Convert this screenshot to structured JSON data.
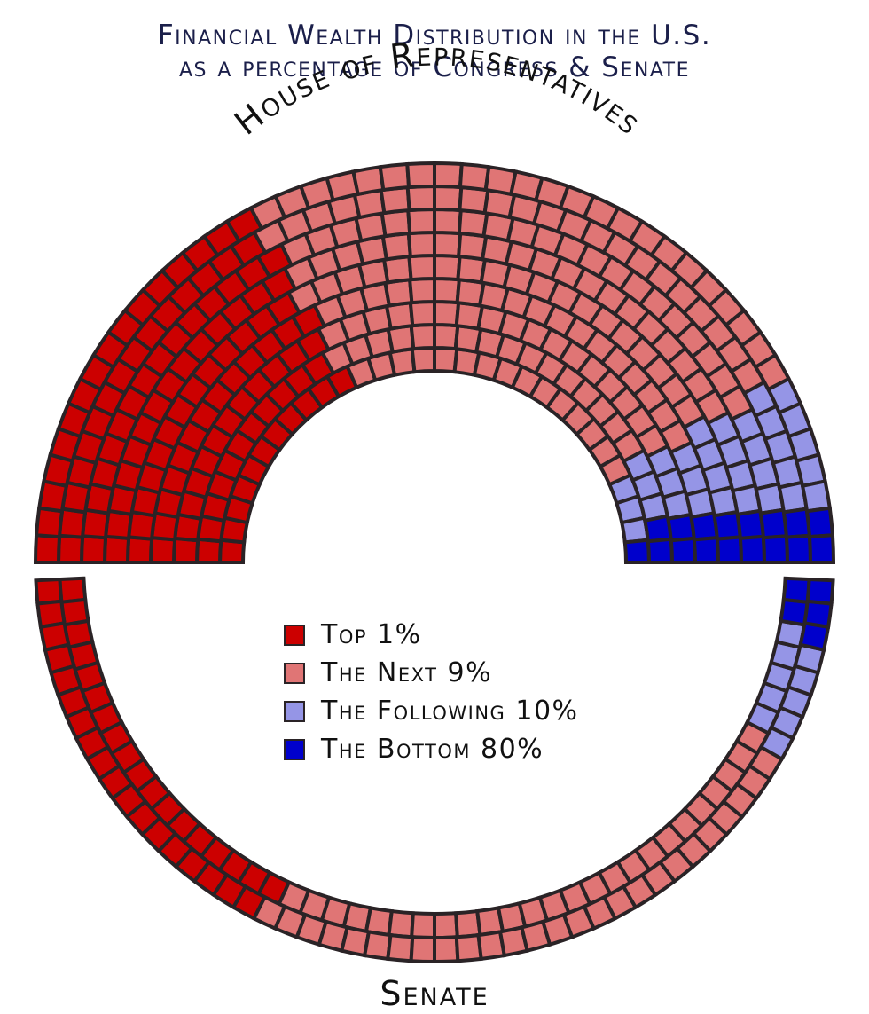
{
  "title_line1": "Financial Wealth Distribution in the U.S.",
  "title_line2": "as a percentage of Congress & Senate",
  "legend": [
    {
      "label": "Top 1%",
      "color": "#cc0000"
    },
    {
      "label": "The Next 9%",
      "color": "#e07575"
    },
    {
      "label": "The Following 10%",
      "color": "#9595e6"
    },
    {
      "label": "The Bottom 80%",
      "color": "#0000cc"
    }
  ],
  "chart_data": [
    {
      "type": "parliament",
      "name": "House of Representatives",
      "seats_total": 435,
      "categories": [
        "Top 1%",
        "The Next 9%",
        "The Following 10%",
        "The Bottom 80%"
      ],
      "values": [
        35,
        50,
        10,
        5
      ]
    },
    {
      "type": "parliament",
      "name": "Senate",
      "seats_total": 100,
      "categories": [
        "Top 1%",
        "The Next 9%",
        "The Following 10%",
        "The Bottom 80%"
      ],
      "values": [
        35,
        50,
        10,
        5
      ]
    }
  ]
}
